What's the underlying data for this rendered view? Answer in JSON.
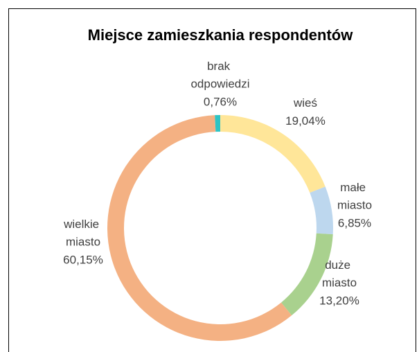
{
  "chart_data": {
    "type": "donut",
    "title": "Miejsce zamieszkania respondentów",
    "categories": [
      "wieś",
      "małe miasto",
      "duże miasto",
      "wielkie miasto",
      "brak odpowiedzi"
    ],
    "values": [
      19.04,
      6.85,
      13.2,
      60.15,
      0.76
    ],
    "value_labels": [
      "19,04%",
      "6,85%",
      "13,20%",
      "60,15%",
      "0,76%"
    ],
    "colors": [
      "#FFE699",
      "#BDD7EE",
      "#A9D18E",
      "#F4B183",
      "#2EC4C4"
    ]
  }
}
